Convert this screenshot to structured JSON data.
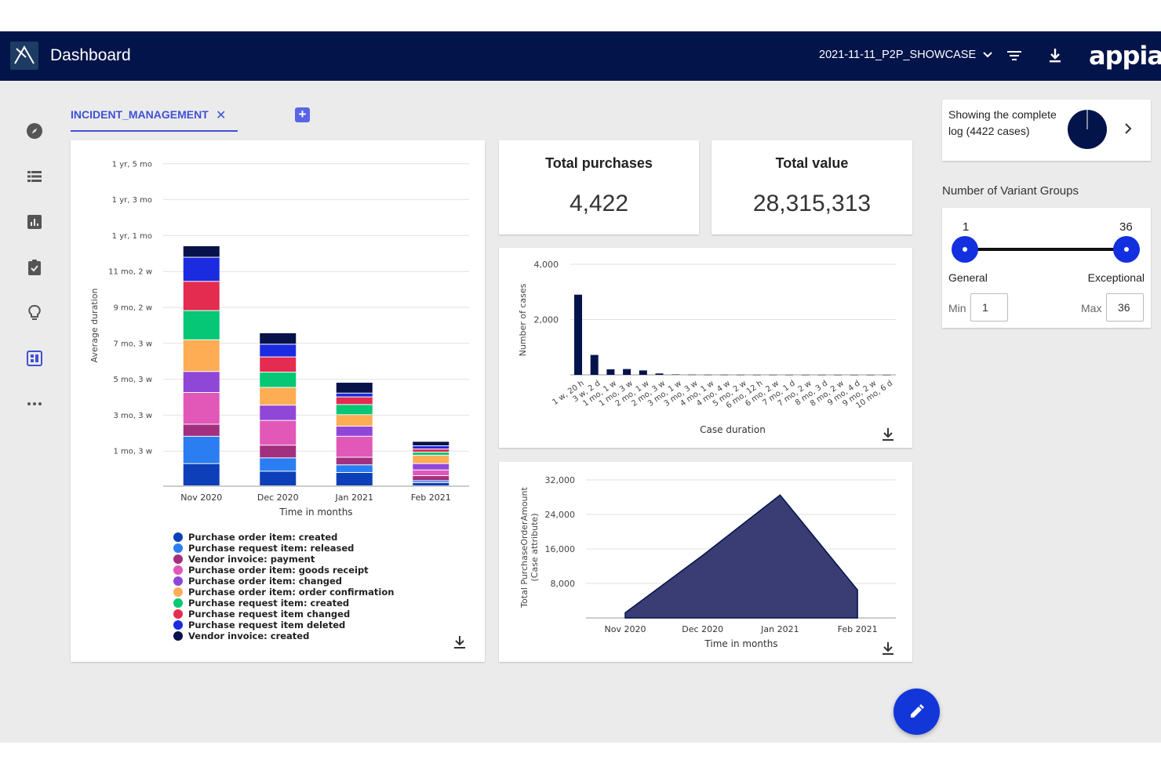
{
  "header": {
    "title": "Dashboard",
    "dataset": "2021-11-11_P2P_SHOWCASE",
    "brand": "appian"
  },
  "tabs": [
    {
      "label": "INCIDENT_MANAGEMENT",
      "active": true
    }
  ],
  "add_tab_label": "+",
  "sidenav": [
    "compass-icon",
    "list-icon",
    "bar-chart-icon",
    "clipboard-check-icon",
    "lightbulb-icon",
    "dashboard-icon",
    "more-icon"
  ],
  "kpis": [
    {
      "title": "Total purchases",
      "value": "4,422"
    },
    {
      "title": "Total value",
      "value": "28,315,313"
    }
  ],
  "log_card": {
    "text": "Showing the complete log (4422 cases)"
  },
  "variant_groups": {
    "title": "Number of Variant Groups",
    "min_value": "1",
    "max_value": "36",
    "left_label": "General",
    "right_label": "Exceptional",
    "min_label": "Min",
    "max_label": "Max"
  },
  "colors": {
    "accent": "#3f51d6",
    "header_bg": "#03144a",
    "navy": "#03144a"
  },
  "chart_data": [
    {
      "type": "bar",
      "stacked": true,
      "xlabel": "Time in months",
      "ylabel": "Average duration",
      "categories": [
        "Nov 2020",
        "Dec 2020",
        "Jan 2021",
        "Feb 2021"
      ],
      "ytick_labels": [
        "1 mo, 3 w",
        "3 mo, 3 w",
        "5 mo, 3 w",
        "7 mo, 3 w",
        "9 mo, 2 w",
        "11 mo, 2 w",
        "1 yr, 1 mo",
        "1 yr, 3 mo",
        "1 yr, 5 mo"
      ],
      "ylim_days": [
        0,
        520
      ],
      "value_unit": "days",
      "legend_position": "bottom-left",
      "series": [
        {
          "name": "Purchase order item: created",
          "color": "#0d3fb8",
          "values": [
            35,
            23,
            21,
            5
          ]
        },
        {
          "name": "Purchase request item: released",
          "color": "#2a7ef2",
          "values": [
            43,
            21,
            12,
            3
          ]
        },
        {
          "name": "Vendor invoice: payment",
          "color": "#a3307e",
          "values": [
            19,
            20,
            12,
            8
          ]
        },
        {
          "name": "Purchase order item: goods receipt",
          "color": "#e158b8",
          "values": [
            50,
            39,
            33,
            9
          ]
        },
        {
          "name": "Purchase order item: changed",
          "color": "#8f47d8",
          "values": [
            33,
            24,
            16,
            10
          ]
        },
        {
          "name": "Purchase order item: order confirmation",
          "color": "#ffad55",
          "values": [
            50,
            28,
            18,
            13
          ]
        },
        {
          "name": "Purchase request item: created",
          "color": "#05c776",
          "values": [
            46,
            24,
            16,
            5
          ]
        },
        {
          "name": "Purchase request item changed",
          "color": "#e32c50",
          "values": [
            46,
            24,
            12,
            5
          ]
        },
        {
          "name": "Purchase request item deleted",
          "color": "#1b2be0",
          "values": [
            38,
            20,
            6,
            5
          ]
        },
        {
          "name": "Vendor invoice: created",
          "color": "#07124a",
          "values": [
            18,
            18,
            17,
            7
          ]
        }
      ]
    },
    {
      "type": "bar",
      "xlabel": "Case duration",
      "ylabel": "Number of cases",
      "yticks": [
        2000,
        4000
      ],
      "ytick_labels": [
        "2,000",
        "4,000"
      ],
      "ylim": [
        0,
        4000
      ],
      "categories": [
        "1 w, 20 h",
        "3 w, 2 d",
        "1 mo, 1 w",
        "1 mo, 3 w",
        "2 mo, 1 w",
        "2 mo, 3 w",
        "3 mo, 1 w",
        "3 mo, 3 w",
        "4 mo, 1 w",
        "4 mo, 4 w",
        "5 mo, 2 w",
        "6 mo, 12 h",
        "6 mo, 2 w",
        "7 mo, 1 d",
        "7 mo, 2 w",
        "8 mo, 3 d",
        "8 mo, 2 w",
        "9 mo, 4 d",
        "9 mo, 2 w",
        "10 mo, 6 d"
      ],
      "values": [
        2900,
        720,
        200,
        210,
        160,
        50,
        15,
        8,
        6,
        5,
        4,
        3,
        3,
        2,
        2,
        2,
        2,
        1,
        1,
        1
      ]
    },
    {
      "type": "area",
      "xlabel": "Time in months",
      "ylabel": "Total PurchaseOrderAmount (Case attribute)",
      "categories": [
        "Nov 2020",
        "Dec 2020",
        "Jan 2021",
        "Feb 2021"
      ],
      "yticks": [
        8000,
        16000,
        24000,
        32000
      ],
      "ytick_labels": [
        "8,000",
        "16,000",
        "24,000",
        "32,000"
      ],
      "ylim": [
        0,
        34000
      ],
      "values": [
        1200,
        14500,
        28500,
        6500
      ],
      "color": "#393d73"
    }
  ]
}
